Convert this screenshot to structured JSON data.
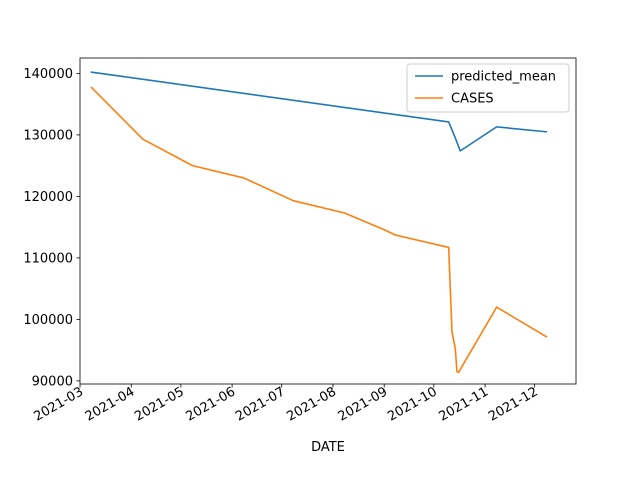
{
  "chart_data": {
    "type": "line",
    "title": "",
    "xlabel": "DATE",
    "ylabel": "",
    "x_type": "date",
    "xlim": [
      "2021-03-01",
      "2021-12-26"
    ],
    "ylim": [
      89500,
      142500
    ],
    "grid": false,
    "legend_position": "top-right",
    "x_ticks": [
      {
        "value": "2021-03-01",
        "label": "2021-03"
      },
      {
        "value": "2021-04-01",
        "label": "2021-04"
      },
      {
        "value": "2021-05-01",
        "label": "2021-05"
      },
      {
        "value": "2021-06-01",
        "label": "2021-06"
      },
      {
        "value": "2021-07-01",
        "label": "2021-07"
      },
      {
        "value": "2021-08-01",
        "label": "2021-08"
      },
      {
        "value": "2021-09-01",
        "label": "2021-09"
      },
      {
        "value": "2021-10-01",
        "label": "2021-10"
      },
      {
        "value": "2021-11-01",
        "label": "2021-11"
      },
      {
        "value": "2021-12-01",
        "label": "2021-12"
      }
    ],
    "y_ticks": [
      {
        "value": 90000,
        "label": "90000"
      },
      {
        "value": 100000,
        "label": "100000"
      },
      {
        "value": 110000,
        "label": "110000"
      },
      {
        "value": 120000,
        "label": "120000"
      },
      {
        "value": 130000,
        "label": "130000"
      },
      {
        "value": 140000,
        "label": "140000"
      }
    ],
    "series": [
      {
        "name": "predicted_mean",
        "color": "#1f77b4",
        "points": [
          {
            "x": "2021-03-08",
            "y": 140200
          },
          {
            "x": "2021-10-10",
            "y": 132100
          },
          {
            "x": "2021-10-14",
            "y": 129500
          },
          {
            "x": "2021-10-17",
            "y": 127400
          },
          {
            "x": "2021-11-08",
            "y": 131300
          },
          {
            "x": "2021-12-08",
            "y": 130500
          }
        ]
      },
      {
        "name": "CASES",
        "color": "#ff7f0e",
        "points": [
          {
            "x": "2021-03-08",
            "y": 137700
          },
          {
            "x": "2021-04-08",
            "y": 129300
          },
          {
            "x": "2021-05-08",
            "y": 125000
          },
          {
            "x": "2021-06-08",
            "y": 123000
          },
          {
            "x": "2021-07-08",
            "y": 119300
          },
          {
            "x": "2021-08-08",
            "y": 117300
          },
          {
            "x": "2021-08-31",
            "y": 114700
          },
          {
            "x": "2021-09-08",
            "y": 113700
          },
          {
            "x": "2021-10-10",
            "y": 111700
          },
          {
            "x": "2021-10-12",
            "y": 98000
          },
          {
            "x": "2021-10-14",
            "y": 95200
          },
          {
            "x": "2021-10-15",
            "y": 91500
          },
          {
            "x": "2021-10-16",
            "y": 91400
          },
          {
            "x": "2021-11-08",
            "y": 102000
          },
          {
            "x": "2021-12-08",
            "y": 97200
          }
        ]
      }
    ]
  }
}
